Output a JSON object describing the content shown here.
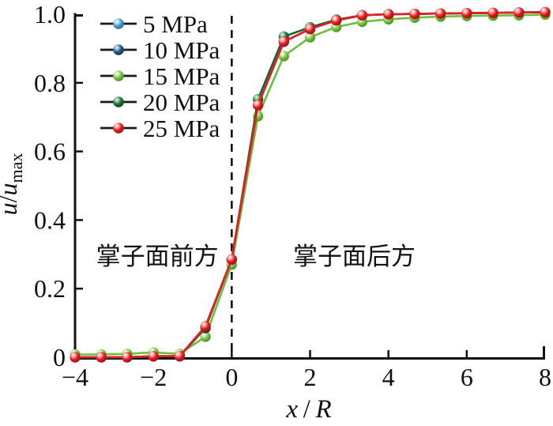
{
  "figure_type": "scientific line chart",
  "chart_data": {
    "type": "line",
    "title": "",
    "xlabel": "x/R",
    "ylabel": "u/u_max",
    "xlim": [
      -4,
      8
    ],
    "ylim": [
      0,
      1.0
    ],
    "x_ticks": {
      "values": [
        -4,
        -2,
        0,
        2,
        4,
        6,
        8
      ],
      "labels": [
        "−4",
        "−2",
        "0",
        "2",
        "4",
        "6",
        "8"
      ]
    },
    "y_ticks": {
      "values": [
        0,
        0.2,
        0.4,
        0.6,
        0.8,
        1.0
      ],
      "labels": [
        "0",
        "0.2",
        "0.4",
        "0.6",
        "0.8",
        "1.0"
      ]
    },
    "x": [
      -4,
      -3.33,
      -2.67,
      -2,
      -1.33,
      -0.67,
      0,
      0.67,
      1.33,
      2,
      2.67,
      3.33,
      4,
      4.67,
      5.33,
      6,
      6.67,
      7.33,
      8
    ],
    "series": [
      {
        "name": "5 MPa",
        "values": [
          0.0,
          0.0,
          0.0,
          0.003,
          0.003,
          0.09,
          0.285,
          0.735,
          0.92,
          0.957,
          0.982,
          0.997,
          1.0,
          1.001,
          1.002,
          1.003,
          1.004,
          1.005,
          1.006
        ],
        "line_color": "#4d9fd2",
        "marker": {
          "light": "#cfe8f8",
          "main": "#4d9fd2",
          "dark": "#23618d"
        }
      },
      {
        "name": "10 MPa",
        "values": [
          0.0,
          0.0,
          0.0,
          0.003,
          0.003,
          0.09,
          0.285,
          0.735,
          0.92,
          0.957,
          0.982,
          0.997,
          1.0,
          1.001,
          1.002,
          1.003,
          1.004,
          1.005,
          1.006
        ],
        "line_color": "#235a84",
        "marker": {
          "light": "#a9c6dc",
          "main": "#235a84",
          "dark": "#0f2f4d"
        }
      },
      {
        "name": "15 MPa",
        "values": [
          0.008,
          0.008,
          0.01,
          0.014,
          0.01,
          0.06,
          0.27,
          0.703,
          0.878,
          0.933,
          0.963,
          0.978,
          0.985,
          0.99,
          0.993,
          0.995,
          0.996,
          0.997,
          0.999
        ],
        "line_color": "#6dbe38",
        "marker": {
          "light": "#dcf2c4",
          "main": "#79c443",
          "dark": "#3f8a1c"
        }
      },
      {
        "name": "20 MPa",
        "values": [
          0.0,
          0.0,
          0.0,
          0.003,
          0.003,
          0.085,
          0.285,
          0.752,
          0.935,
          0.962,
          0.984,
          0.997,
          1.0,
          1.001,
          1.002,
          1.003,
          1.004,
          1.005,
          1.006
        ],
        "line_color": "#1c6331",
        "marker": {
          "light": "#a8d3ab",
          "main": "#20703a",
          "dark": "#0d3f1d"
        }
      },
      {
        "name": "25 MPa",
        "values": [
          0.0,
          0.0,
          0.0,
          0.003,
          0.003,
          0.09,
          0.285,
          0.735,
          0.92,
          0.957,
          0.982,
          0.997,
          1.0,
          1.001,
          1.002,
          1.003,
          1.004,
          1.005,
          1.006
        ],
        "line_color": "#e41e26",
        "marker": {
          "light": "#ffc9c2",
          "main": "#ec1c24",
          "dark": "#9e0b10"
        }
      }
    ],
    "legend": {
      "position": "top-left",
      "line_color": "#1a1a1a"
    },
    "reference_line": {
      "x": 0,
      "style": "dashed",
      "color": "#111111"
    },
    "annotations": [
      {
        "text": "掌子面前方",
        "x": -1.9,
        "y": 0.295
      },
      {
        "text": "掌子面后方",
        "x": 3.13,
        "y": 0.295
      }
    ],
    "grid": false
  }
}
